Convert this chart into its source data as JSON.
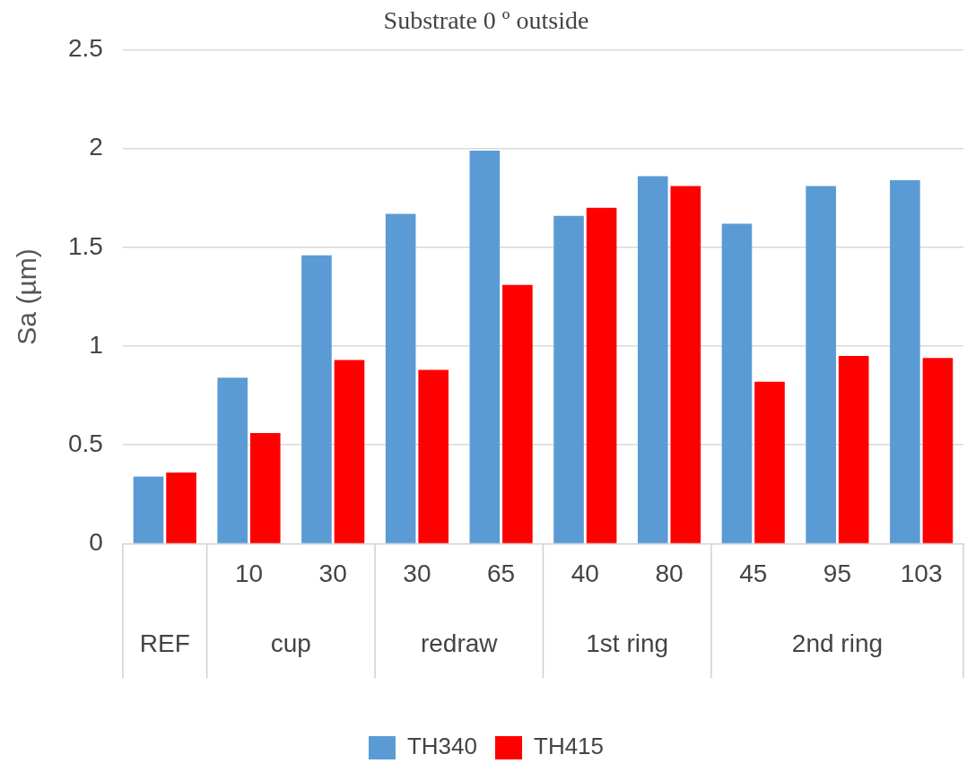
{
  "chart_data": {
    "type": "bar",
    "title": "Substrate 0 º outside",
    "ylabel": "Sa (µm)",
    "categories": [
      null,
      "10",
      "30",
      "30",
      "65",
      "40",
      "80",
      "45",
      "95",
      "103"
    ],
    "series": [
      {
        "name": "TH340",
        "color": "#5b9bd5",
        "values": [
          0.34,
          0.84,
          1.46,
          1.67,
          1.99,
          1.66,
          1.86,
          1.62,
          1.81,
          1.84
        ]
      },
      {
        "name": "TH415",
        "color": "#ff0000",
        "values": [
          0.36,
          0.56,
          0.93,
          0.88,
          1.31,
          1.7,
          1.81,
          0.82,
          0.95,
          0.94
        ]
      }
    ],
    "annotations": [
      "REF",
      "cup",
      "redraw",
      "1st ring",
      "2nd ring"
    ],
    "ylim": [
      0,
      2.5
    ],
    "yticks": [
      0,
      0.5,
      1,
      1.5,
      2,
      2.5
    ],
    "grid": "y",
    "legend": "bottom"
  }
}
